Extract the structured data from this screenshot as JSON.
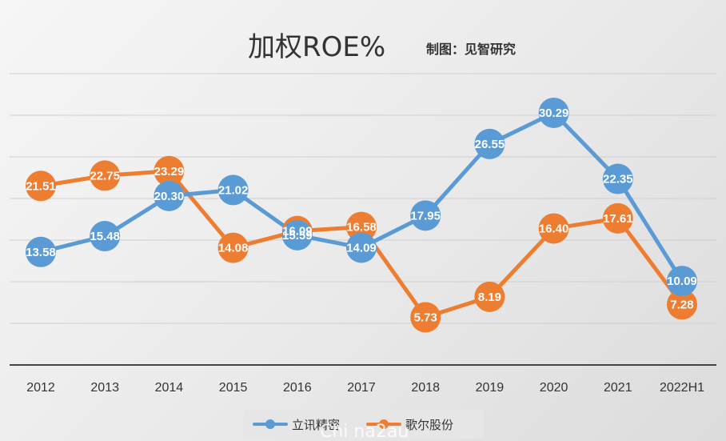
{
  "chart_data": {
    "type": "line",
    "title": "加权ROE%",
    "subtitle": "制图：见智研究",
    "categories": [
      "2012",
      "2013",
      "2014",
      "2015",
      "2016",
      "2017",
      "2018",
      "2019",
      "2020",
      "2021",
      "2022H1"
    ],
    "ylim": [
      0,
      35
    ],
    "grid": true,
    "legend_position": "bottom",
    "series": [
      {
        "name": "立讯精密",
        "color": "#5b9bd5",
        "values": [
          13.58,
          15.48,
          20.3,
          21.02,
          15.59,
          14.09,
          17.95,
          26.55,
          30.29,
          22.35,
          10.09
        ],
        "labels": [
          "13.58",
          "15.48",
          "20.30",
          "21.02",
          "15.59",
          "14.09",
          "17.95",
          "26.55",
          "30.29",
          "22.35",
          "10.09"
        ]
      },
      {
        "name": "歌尔股份",
        "color": "#ed7d31",
        "values": [
          21.51,
          22.75,
          23.29,
          14.08,
          16.09,
          16.58,
          5.73,
          8.19,
          16.4,
          17.61,
          7.28
        ],
        "labels": [
          "21.51",
          "22.75",
          "23.29",
          "14.08",
          "16.09",
          "16.58",
          "5.73",
          "8.19",
          "16.40",
          "17.61",
          "7.28"
        ]
      }
    ]
  },
  "watermark": "Chi na2au"
}
